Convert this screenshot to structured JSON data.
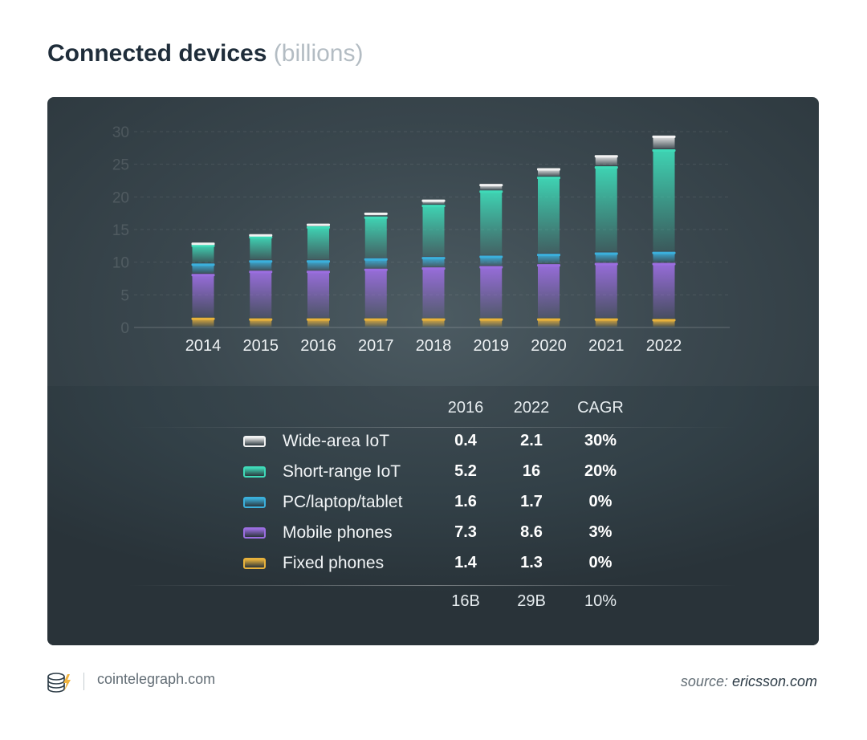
{
  "title": {
    "main": "Connected devices",
    "sub": "(billions)"
  },
  "chart_data": {
    "type": "bar",
    "stacked": true,
    "categories": [
      "2014",
      "2015",
      "2016",
      "2017",
      "2018",
      "2019",
      "2020",
      "2021",
      "2022"
    ],
    "ylim": [
      0,
      30
    ],
    "yticks": [
      "0",
      "5",
      "10",
      "15",
      "20",
      "25",
      "30"
    ],
    "series": [
      {
        "name": "Fixed phones",
        "color": "#e8b23c",
        "values": [
          1.5,
          1.4,
          1.4,
          1.4,
          1.4,
          1.4,
          1.4,
          1.4,
          1.3
        ]
      },
      {
        "name": "Mobile phones",
        "color": "#9b6ee0",
        "values": [
          6.7,
          7.3,
          7.3,
          7.6,
          7.8,
          8.0,
          8.3,
          8.5,
          8.6
        ]
      },
      {
        "name": "PC/laptop/tablet",
        "color": "#3bb0dc",
        "values": [
          1.6,
          1.6,
          1.6,
          1.6,
          1.6,
          1.6,
          1.6,
          1.6,
          1.7
        ]
      },
      {
        "name": "Short-range IoT",
        "color": "#3fdab8",
        "values": [
          2.9,
          3.7,
          5.2,
          6.4,
          8.0,
          10.0,
          11.8,
          13.2,
          15.7
        ]
      },
      {
        "name": "Wide-area IoT",
        "color": "#f2f2f2",
        "values": [
          0.3,
          0.3,
          0.4,
          0.6,
          0.8,
          1.0,
          1.3,
          1.7,
          2.1
        ]
      }
    ]
  },
  "legend_table": {
    "headers": [
      "2016",
      "2022",
      "CAGR"
    ],
    "rows": [
      {
        "name": "Wide-area IoT",
        "color": "#f2f2f2",
        "v2016": "0.4",
        "v2022": "2.1",
        "cagr": "30%"
      },
      {
        "name": "Short-range IoT",
        "color": "#3fdab8",
        "v2016": "5.2",
        "v2022": "16",
        "cagr": "20%"
      },
      {
        "name": "PC/laptop/tablet",
        "color": "#3bb0dc",
        "v2016": "1.6",
        "v2022": "1.7",
        "cagr": "0%"
      },
      {
        "name": "Mobile phones",
        "color": "#9b6ee0",
        "v2016": "7.3",
        "v2022": "8.6",
        "cagr": "3%"
      },
      {
        "name": "Fixed phones",
        "color": "#e8b23c",
        "v2016": "1.4",
        "v2022": "1.3",
        "cagr": "0%"
      }
    ],
    "totals": [
      "16B",
      "29B",
      "10%"
    ]
  },
  "footer": {
    "site": "cointelegraph.com",
    "source_prefix": "source:",
    "source_name": "ericsson.com"
  }
}
